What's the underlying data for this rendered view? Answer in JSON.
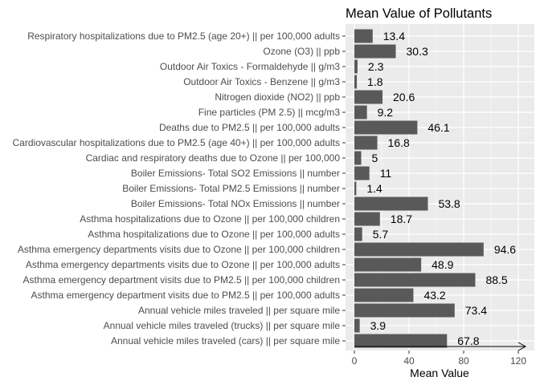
{
  "chart_data": {
    "type": "bar",
    "orientation": "horizontal",
    "title": "Mean Value of Pollutants",
    "xlabel": "Mean Value",
    "ylabel": "",
    "xlim": [
      0,
      125
    ],
    "x_ticks": [
      0,
      40,
      80,
      120
    ],
    "grid": true,
    "legend": "none",
    "colors": {
      "panel_background": "#ebebeb",
      "grid_major": "#ffffff",
      "bar_fill": "#595959",
      "text": "#000000",
      "tick_text": "#4d4d4d"
    },
    "categories": [
      "Respiratory hospitalizations due to PM2.5 (age 20+) || per 100,000 adults",
      "Ozone (O3) || ppb",
      "Outdoor Air Toxics - Formaldehyde || g/m3",
      "Outdoor Air Toxics - Benzene || g/m3",
      "Nitrogen dioxide (NO2) || ppb",
      "Fine particles (PM 2.5) || mcg/m3",
      "Deaths due to PM2.5 || per 100,000 adults",
      "Cardiovascular hospitalizations due to PM2.5 (age 40+) || per 100,000 adults",
      "Cardiac and respiratory deaths due to Ozone || per 100,000",
      "Boiler Emissions- Total SO2 Emissions || number",
      "Boiler Emissions- Total PM2.5 Emissions || number",
      "Boiler Emissions- Total NOx Emissions || number",
      "Asthma hospitalizations due to Ozone || per 100,000 children",
      "Asthma hospitalizations due to Ozone || per 100,000 adults",
      "Asthma emergency departments visits due to Ozone || per 100,000 children",
      "Asthma emergency departments visits due to Ozone || per 100,000 adults",
      "Asthma emergency department visits due to PM2.5 || per 100,000 children",
      "Asthma emergency department visits due to PM2.5 || per 100,000 adults",
      "Annual vehicle miles traveled || per square mile",
      "Annual vehicle miles traveled (trucks) || per square mile",
      "Annual vehicle miles traveled (cars) || per square mile"
    ],
    "values": [
      13.4,
      30.3,
      2.3,
      1.8,
      20.6,
      9.2,
      46.1,
      16.8,
      5,
      11,
      1.4,
      53.8,
      18.7,
      5.7,
      94.6,
      48.9,
      88.5,
      43.2,
      73.4,
      3.9,
      67.8
    ],
    "value_labels": [
      "13.4",
      "30.3",
      "2.3",
      "1.8",
      "20.6",
      "9.2",
      "46.1",
      "16.8",
      "5",
      "11",
      "1.4",
      "53.8",
      "18.7",
      "5.7",
      "94.6",
      "48.9",
      "88.5",
      "43.2",
      "73.4",
      "3.9",
      "67.8"
    ]
  }
}
